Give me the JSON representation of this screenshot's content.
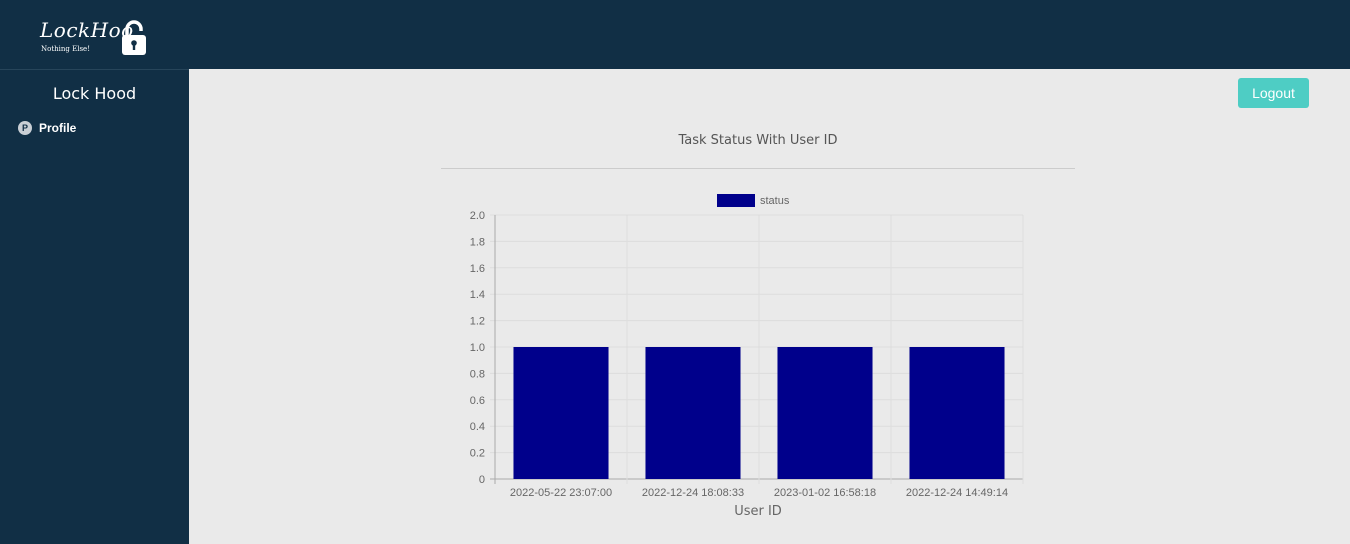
{
  "brand": {
    "logo_text": "LockHoo",
    "tagline": "Nothing Else!"
  },
  "sidebar": {
    "title": "Lock Hood",
    "items": [
      {
        "badge": "P",
        "label": "Profile"
      }
    ]
  },
  "header": {
    "logout_label": "Logout"
  },
  "colors": {
    "nav_bg": "#112f45",
    "accent": "#4ecdc4",
    "bar": "#00008b"
  },
  "chart_data": {
    "type": "bar",
    "title": "Task Status With User ID",
    "xlabel": "User ID",
    "ylabel": "",
    "categories": [
      "2022-05-22 23:07:00",
      "2022-12-24 18:08:33",
      "2023-01-02 16:58:18",
      "2022-12-24 14:49:14"
    ],
    "series": [
      {
        "name": "status",
        "values": [
          1,
          1,
          1,
          1
        ]
      }
    ],
    "ylim": [
      0,
      2.0
    ],
    "yticks": [
      "0",
      "0.2",
      "0.4",
      "0.6",
      "0.8",
      "1.0",
      "1.2",
      "1.4",
      "1.6",
      "1.8",
      "2.0"
    ],
    "grid": true,
    "legend": "top"
  }
}
